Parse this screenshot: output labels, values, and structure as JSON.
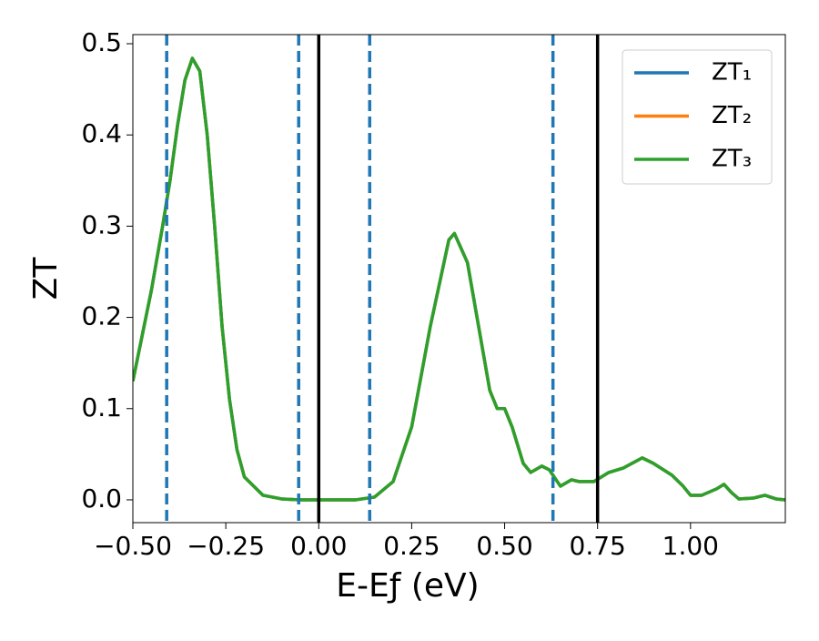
{
  "chart_data": {
    "type": "line",
    "xlabel": "E-Eƒ (eV)",
    "ylabel": "ZT",
    "x": [
      -0.5,
      -0.45,
      -0.42,
      -0.4,
      -0.38,
      -0.36,
      -0.34,
      -0.32,
      -0.3,
      -0.28,
      -0.26,
      -0.24,
      -0.22,
      -0.2,
      -0.15,
      -0.1,
      -0.05,
      0,
      0.1,
      0.15,
      0.2,
      0.25,
      0.3,
      0.35,
      0.365,
      0.4,
      0.43,
      0.46,
      0.48,
      0.5,
      0.52,
      0.55,
      0.57,
      0.6,
      0.62,
      0.65,
      0.68,
      0.7,
      0.74,
      0.78,
      0.82,
      0.87,
      0.9,
      0.95,
      0.98,
      1.0,
      1.03,
      1.07,
      1.09,
      1.11,
      1.13,
      1.17,
      1.2,
      1.23,
      1.255
    ],
    "series": [
      {
        "name": "ZT₁",
        "color": "#1f77b4",
        "values": [
          0.13,
          0.23,
          0.3,
          0.35,
          0.41,
          0.46,
          0.484,
          0.47,
          0.4,
          0.3,
          0.19,
          0.11,
          0.055,
          0.025,
          0.005,
          0.001,
          0,
          0,
          0,
          0.003,
          0.02,
          0.08,
          0.19,
          0.285,
          0.292,
          0.26,
          0.19,
          0.12,
          0.1,
          0.1,
          0.08,
          0.04,
          0.03,
          0.037,
          0.033,
          0.015,
          0.022,
          0.02,
          0.02,
          0.03,
          0.035,
          0.046,
          0.04,
          0.027,
          0.015,
          0.005,
          0.005,
          0.012,
          0.017,
          0.008,
          0.001,
          0.002,
          0.005,
          0.001,
          0
        ]
      },
      {
        "name": "ZT₂",
        "color": "#ff7f0e",
        "values": [
          0.13,
          0.23,
          0.3,
          0.35,
          0.41,
          0.46,
          0.484,
          0.47,
          0.4,
          0.3,
          0.19,
          0.11,
          0.055,
          0.025,
          0.005,
          0.001,
          0,
          0,
          0,
          0.003,
          0.02,
          0.08,
          0.19,
          0.285,
          0.292,
          0.26,
          0.19,
          0.12,
          0.1,
          0.1,
          0.08,
          0.04,
          0.03,
          0.037,
          0.033,
          0.015,
          0.022,
          0.02,
          0.02,
          0.03,
          0.035,
          0.046,
          0.04,
          0.027,
          0.015,
          0.005,
          0.005,
          0.012,
          0.017,
          0.008,
          0.001,
          0.002,
          0.005,
          0.001,
          0
        ]
      },
      {
        "name": "ZT₃",
        "color": "#2ca02c",
        "values": [
          0.13,
          0.23,
          0.3,
          0.35,
          0.41,
          0.46,
          0.484,
          0.47,
          0.4,
          0.3,
          0.19,
          0.11,
          0.055,
          0.025,
          0.005,
          0.001,
          0,
          0,
          0,
          0.003,
          0.02,
          0.08,
          0.19,
          0.285,
          0.292,
          0.26,
          0.19,
          0.12,
          0.1,
          0.1,
          0.08,
          0.04,
          0.03,
          0.037,
          0.033,
          0.015,
          0.022,
          0.02,
          0.02,
          0.03,
          0.035,
          0.046,
          0.04,
          0.027,
          0.015,
          0.005,
          0.005,
          0.012,
          0.017,
          0.008,
          0.001,
          0.002,
          0.005,
          0.001,
          0
        ]
      }
    ],
    "vlines": [
      {
        "x": -0.409,
        "style": "dashed",
        "color": "#1f77b4"
      },
      {
        "x": -0.054,
        "style": "dashed",
        "color": "#1f77b4"
      },
      {
        "x": 0.137,
        "style": "dashed",
        "color": "#1f77b4"
      },
      {
        "x": 0.63,
        "style": "dashed",
        "color": "#1f77b4"
      },
      {
        "x": 0,
        "style": "solid",
        "color": "#000000"
      },
      {
        "x": 0.75,
        "style": "solid",
        "color": "#000000"
      }
    ],
    "xlim": [
      -0.5,
      1.255
    ],
    "ylim": [
      -0.025,
      0.51
    ],
    "xticks": [
      {
        "value": -0.5,
        "label": "−0.50"
      },
      {
        "value": -0.25,
        "label": "−0.25"
      },
      {
        "value": 0,
        "label": "0.00"
      },
      {
        "value": 0.25,
        "label": "0.25"
      },
      {
        "value": 0.5,
        "label": "0.50"
      },
      {
        "value": 0.75,
        "label": "0.75"
      },
      {
        "value": 1.0,
        "label": "1.00"
      }
    ],
    "yticks": [
      {
        "value": 0,
        "label": "0.0"
      },
      0.1,
      0.2,
      0.3,
      0.4,
      0.5
    ],
    "legend": "upper right",
    "grid": false
  }
}
